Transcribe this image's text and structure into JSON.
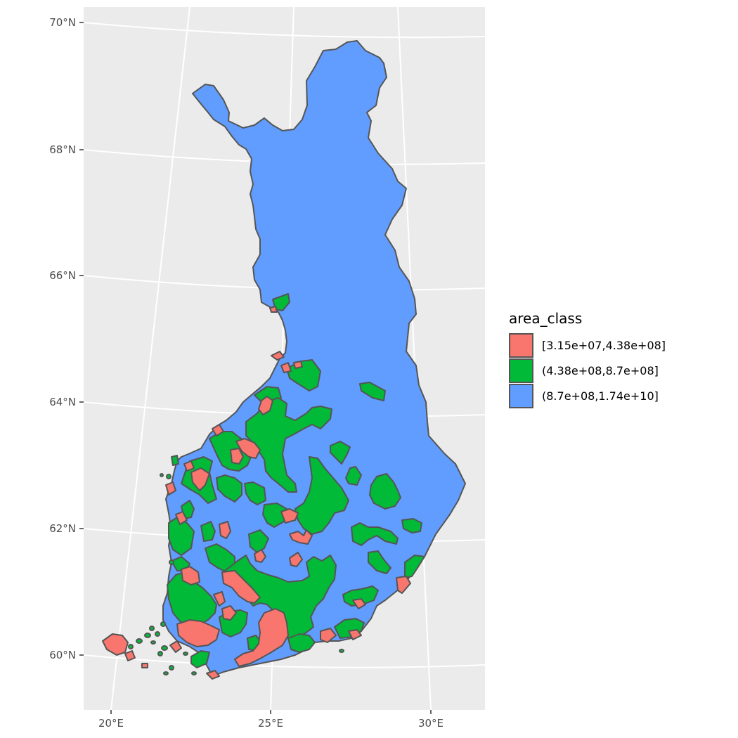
{
  "colors": {
    "panel_bg": "#ebebeb",
    "graticule": "#ffffff",
    "outline": "#555555",
    "class_low": "#f8766d",
    "class_mid": "#00ba38",
    "class_high": "#619cff"
  },
  "axis": {
    "y_labels": [
      "70°N",
      "68°N",
      "66°N",
      "64°N",
      "62°N",
      "60°N"
    ],
    "x_labels": [
      "20°E",
      "25°E",
      "30°E"
    ]
  },
  "legend": {
    "title": "area_class",
    "items": [
      {
        "label": "[3.15e+07,4.38e+08]",
        "color": "#f8766d"
      },
      {
        "label": "(4.38e+08,8.7e+08]",
        "color": "#00ba38"
      },
      {
        "label": "(8.7e+08,1.74e+10]",
        "color": "#619cff"
      }
    ]
  }
}
